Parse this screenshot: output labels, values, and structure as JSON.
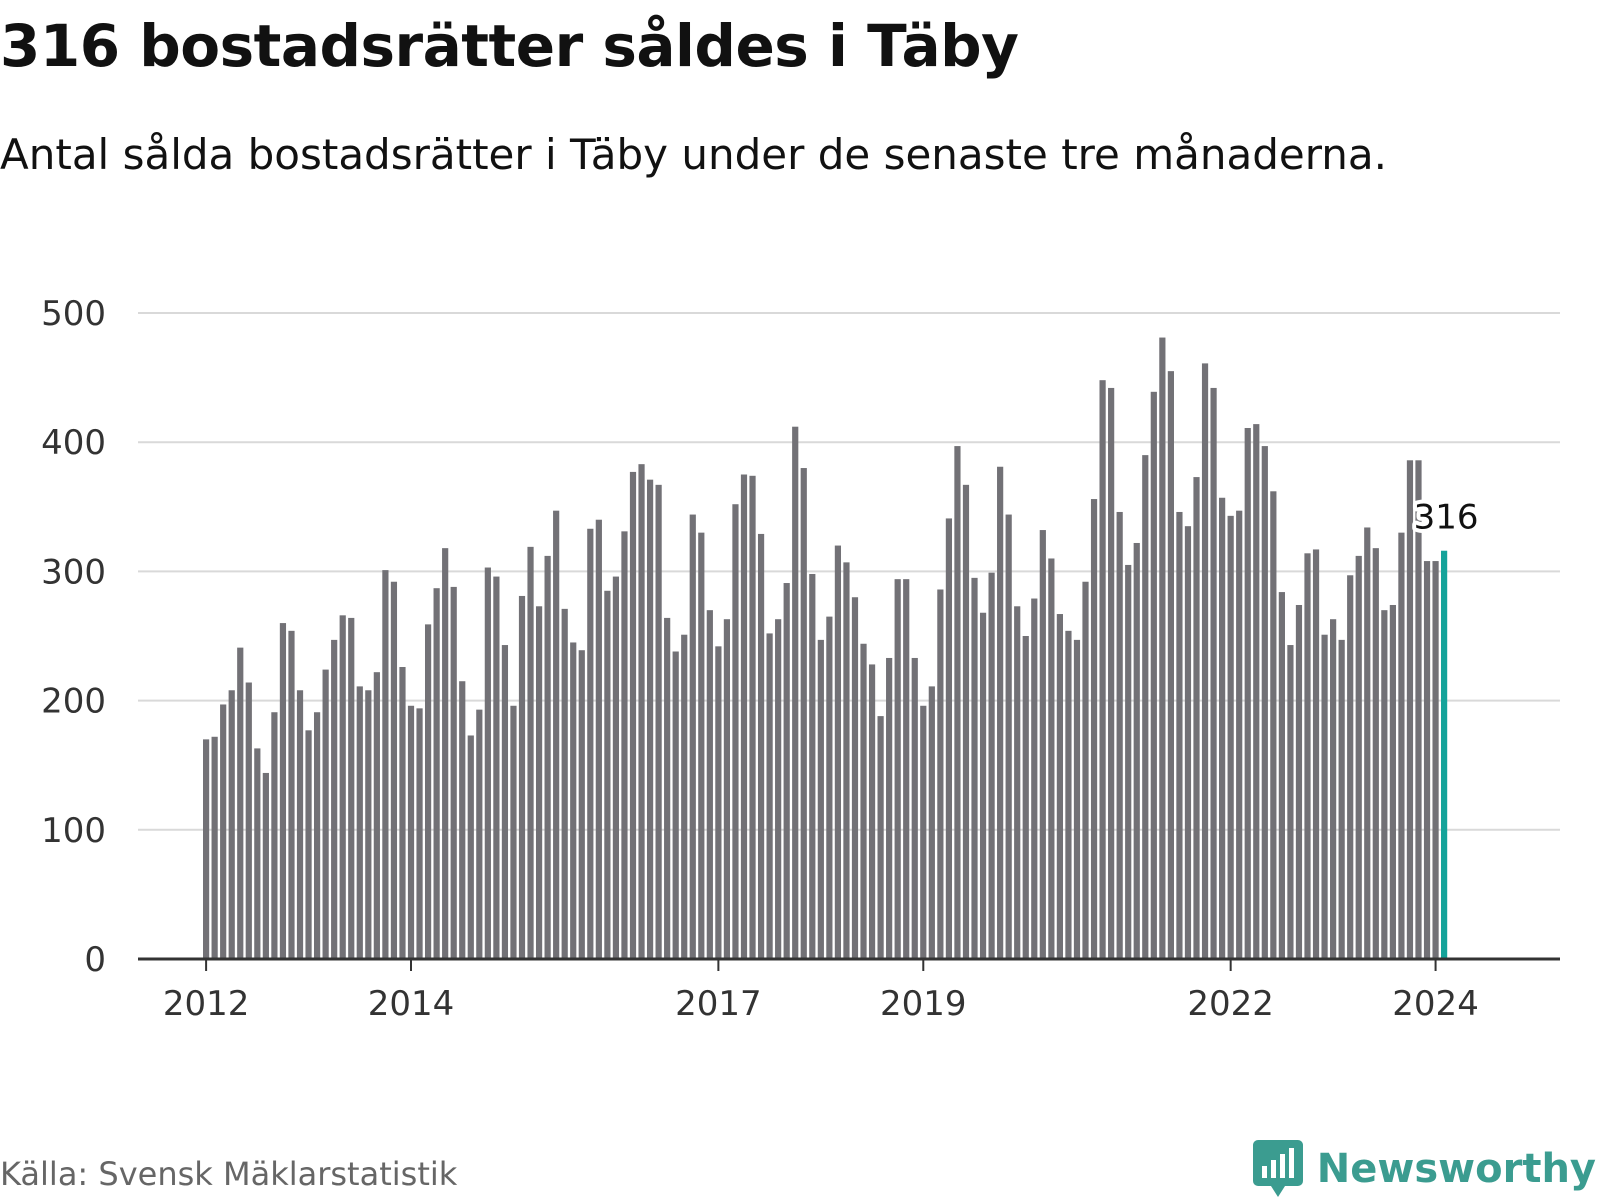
{
  "header": {
    "title": "316 bostadsrätter såldes i Täby",
    "subtitle": "Antal sålda bostadsrätter i Täby under de senaste tre månaderna."
  },
  "footer": {
    "source": "Källa: Svensk Mäklarstatistik",
    "brand": "Newsworthy"
  },
  "colors": {
    "bar": "#727176",
    "highlight": "#14a39a",
    "grid": "#d9d9d9",
    "axis": "#333333",
    "brand": "#3b9c90"
  },
  "icons": {
    "logo": "chart-logo-icon"
  },
  "chart_data": {
    "type": "bar",
    "title": "316 bostadsrätter såldes i Täby",
    "xlabel": "",
    "ylabel": "",
    "ylim": [
      0,
      500
    ],
    "yticks": [
      0,
      100,
      200,
      300,
      400,
      500
    ],
    "grid": true,
    "xticks": [
      {
        "label": "2012",
        "index": 0
      },
      {
        "label": "2014",
        "index": 24
      },
      {
        "label": "2017",
        "index": 60
      },
      {
        "label": "2019",
        "index": 84
      },
      {
        "label": "2022",
        "index": 120
      },
      {
        "label": "2024",
        "index": 144
      }
    ],
    "highlight": {
      "index": 145,
      "label": "316"
    },
    "values": [
      170,
      172,
      197,
      208,
      241,
      214,
      163,
      144,
      191,
      260,
      254,
      208,
      177,
      191,
      224,
      247,
      266,
      264,
      211,
      208,
      222,
      301,
      292,
      226,
      196,
      194,
      259,
      287,
      318,
      288,
      215,
      173,
      193,
      303,
      296,
      243,
      196,
      281,
      319,
      273,
      312,
      347,
      271,
      245,
      239,
      333,
      340,
      285,
      296,
      331,
      377,
      383,
      371,
      367,
      264,
      238,
      251,
      344,
      330,
      270,
      242,
      263,
      352,
      375,
      374,
      329,
      252,
      263,
      291,
      412,
      380,
      298,
      247,
      265,
      320,
      307,
      280,
      244,
      228,
      188,
      233,
      294,
      294,
      233,
      196,
      211,
      286,
      341,
      397,
      367,
      295,
      268,
      299,
      381,
      344,
      273,
      250,
      279,
      332,
      310,
      267,
      254,
      247,
      292,
      356,
      448,
      442,
      346,
      305,
      322,
      390,
      439,
      481,
      455,
      346,
      335,
      373,
      461,
      442,
      357,
      343,
      347,
      411,
      414,
      397,
      362,
      284,
      243,
      274,
      314,
      317,
      251,
      263,
      247,
      297,
      312,
      334,
      318,
      270,
      274,
      330,
      386,
      386,
      308,
      308,
      316
    ]
  }
}
